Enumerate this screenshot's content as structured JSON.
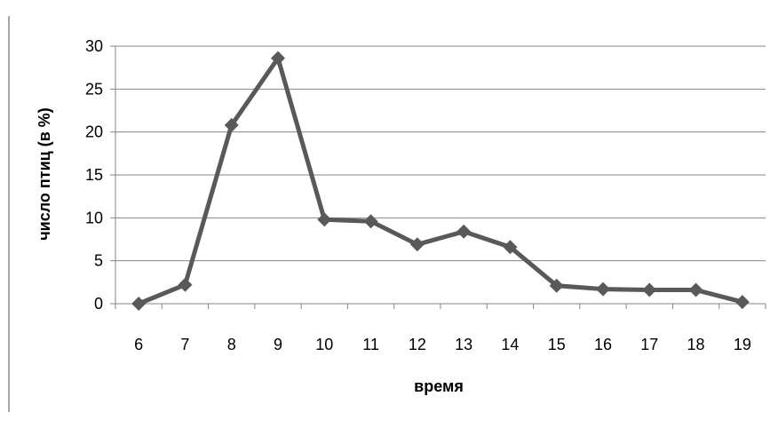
{
  "chart_data": {
    "type": "line",
    "title": "",
    "xlabel": "время",
    "ylabel": "число птиц (в %)",
    "x": [
      6,
      7,
      8,
      9,
      10,
      11,
      12,
      13,
      14,
      15,
      16,
      17,
      18,
      19
    ],
    "x_tick_labels": [
      "6",
      "7",
      "8",
      "9",
      "10",
      "11",
      "12",
      "13",
      "14",
      "15",
      "16",
      "17",
      "18",
      "19"
    ],
    "y_tick_labels": [
      "0",
      "5",
      "10",
      "15",
      "20",
      "25",
      "30"
    ],
    "ylim": [
      0,
      30
    ],
    "y_ticks": [
      0,
      5,
      10,
      15,
      20,
      25,
      30
    ],
    "grid": "horizontal",
    "series": [
      {
        "values": [
          0,
          2.2,
          20.8,
          28.6,
          9.8,
          9.6,
          6.9,
          8.4,
          6.6,
          2.1,
          1.7,
          1.6,
          1.6,
          0.2
        ],
        "color": "#595959",
        "marker": "diamond"
      }
    ]
  }
}
